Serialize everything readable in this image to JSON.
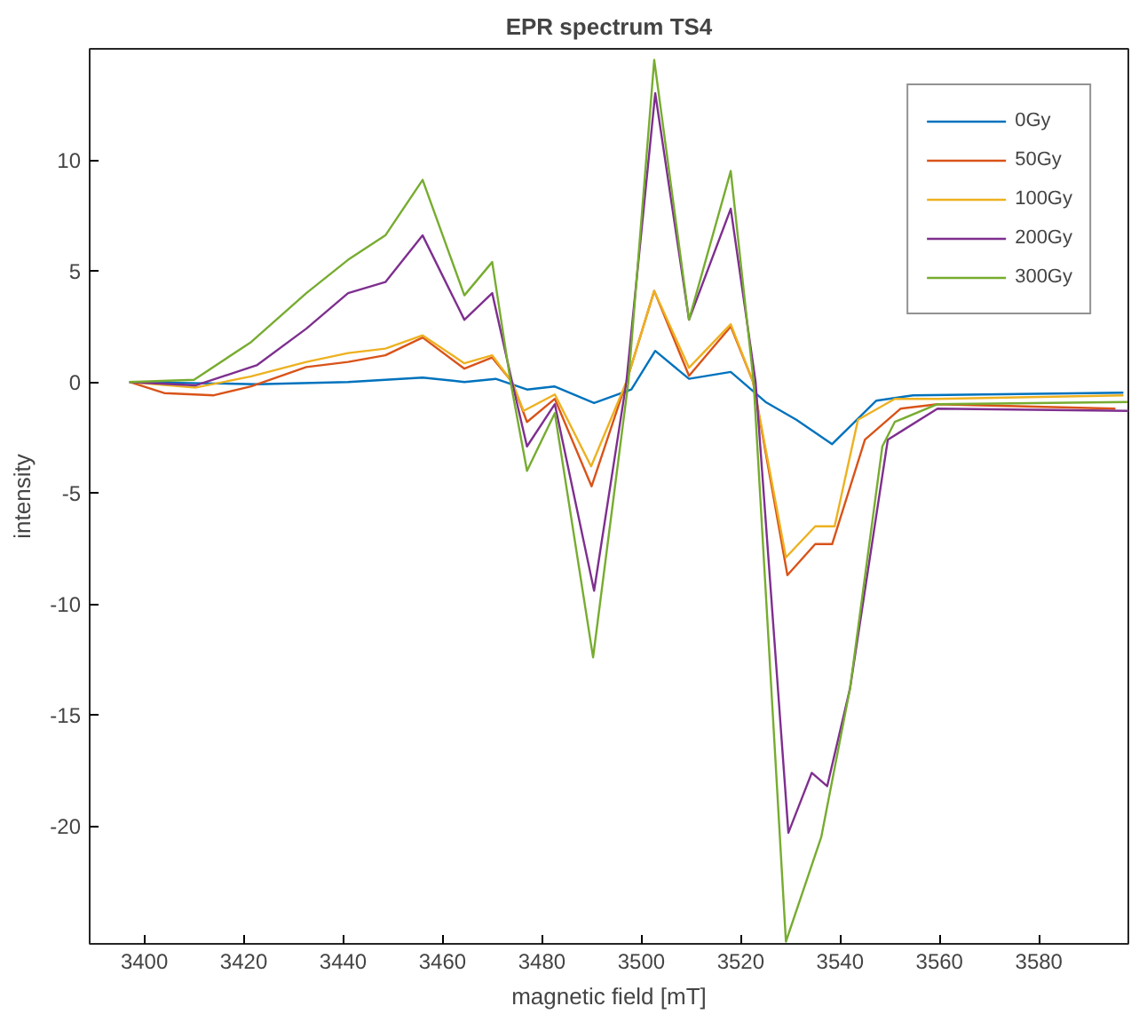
{
  "chart_data": {
    "type": "line",
    "title": "EPR spectrum TS4",
    "xlabel": "magnetic field [mT]",
    "ylabel": "intensity",
    "xlim": [
      3389,
      3598
    ],
    "ylim": [
      -25.3,
      15
    ],
    "xticks": [
      3400,
      3420,
      3440,
      3460,
      3480,
      3500,
      3520,
      3540,
      3560,
      3580
    ],
    "yticks": [
      -20,
      -15,
      -10,
      -5,
      0,
      5,
      10
    ],
    "grid": false,
    "legend": "top right",
    "line_style": "solid",
    "marker": "none",
    "series": [
      {
        "name": "0Gy",
        "color": "#0072bd",
        "x": [
          3397,
          3422.6,
          3441,
          3456,
          3464.4,
          3470.7,
          3477,
          3482.5,
          3490.5,
          3498,
          3502.8,
          3509.6,
          3518,
          3525,
          3531.2,
          3538.4,
          3547.3,
          3554.7,
          3597
        ],
        "values": [
          0,
          -0.1,
          0,
          0.2,
          0,
          0.14,
          -0.34,
          -0.2,
          -0.95,
          -0.34,
          1.4,
          0.14,
          0.45,
          -0.9,
          -1.7,
          -2.8,
          -0.84,
          -0.6,
          -0.48
        ]
      },
      {
        "name": "50Gy",
        "color": "#d95319",
        "x": [
          3397,
          3404,
          3414,
          3421.5,
          3432.6,
          3441,
          3448.5,
          3456,
          3464.4,
          3470,
          3474,
          3477,
          3482.6,
          3490,
          3497,
          3502.6,
          3509.6,
          3518,
          3522.5,
          3529.4,
          3535,
          3538.4,
          3545,
          3552.2,
          3559.6,
          3595.4
        ],
        "values": [
          0,
          -0.5,
          -0.6,
          -0.2,
          0.67,
          0.9,
          1.2,
          2.0,
          0.6,
          1.1,
          0,
          -1.8,
          -0.76,
          -4.7,
          0,
          4.1,
          0.28,
          2.5,
          0,
          -8.7,
          -7.3,
          -7.3,
          -2.6,
          -1.2,
          -1.0,
          -1.2
        ]
      },
      {
        "name": "100Gy",
        "color": "#edb120",
        "x": [
          3397,
          3410.4,
          3421.5,
          3432.6,
          3441,
          3448.5,
          3456,
          3464.4,
          3470,
          3474,
          3476.3,
          3482.6,
          3489.9,
          3497,
          3502.6,
          3509.6,
          3518,
          3522.5,
          3529.1,
          3535,
          3538.9,
          3543.6,
          3551,
          3559.6,
          3597
        ],
        "values": [
          0,
          -0.25,
          0.25,
          0.9,
          1.3,
          1.5,
          2.1,
          0.84,
          1.2,
          0,
          -1.3,
          -0.56,
          -3.8,
          0,
          4.1,
          0.64,
          2.6,
          0,
          -7.9,
          -6.5,
          -6.5,
          -1.7,
          -0.76,
          -0.76,
          -0.6
        ]
      },
      {
        "name": "200Gy",
        "color": "#7e2f8e",
        "x": [
          3397,
          3410.4,
          3422.6,
          3432.6,
          3441,
          3448.5,
          3456,
          3464.4,
          3470,
          3474,
          3477,
          3482.6,
          3490.5,
          3497,
          3502.8,
          3509.6,
          3518,
          3523,
          3529.6,
          3534.3,
          3537.4,
          3542,
          3549.6,
          3559.6,
          3598
        ],
        "values": [
          0,
          -0.15,
          0.75,
          2.4,
          4.0,
          4.5,
          6.6,
          2.8,
          4.0,
          0,
          -2.9,
          -1.0,
          -9.4,
          0,
          13.0,
          2.8,
          7.8,
          0,
          -20.3,
          -17.6,
          -18.2,
          -13.8,
          -2.6,
          -1.2,
          -1.3
        ]
      },
      {
        "name": "300Gy",
        "color": "#77ac30",
        "x": [
          3397,
          3410,
          3421.5,
          3432.6,
          3441,
          3448.5,
          3456,
          3464.4,
          3470,
          3473.7,
          3477,
          3482.6,
          3490.3,
          3497.4,
          3502.6,
          3509.6,
          3518,
          3522.6,
          3529.1,
          3536.2,
          3542,
          3548.5,
          3551,
          3559.6,
          3597.8
        ],
        "values": [
          0,
          0.1,
          1.8,
          4.0,
          5.5,
          6.6,
          9.1,
          3.9,
          5.4,
          0,
          -4.0,
          -1.4,
          -12.4,
          0,
          14.5,
          2.8,
          9.5,
          0,
          -25.2,
          -20.5,
          -13.8,
          -2.9,
          -1.8,
          -1.0,
          -0.9
        ]
      }
    ]
  }
}
